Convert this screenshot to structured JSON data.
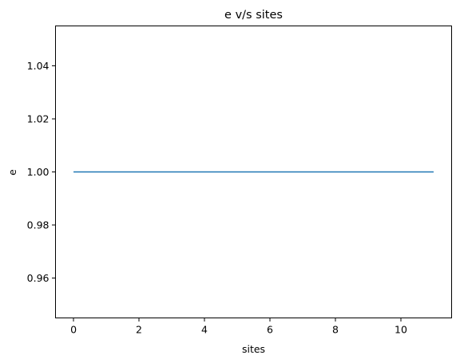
{
  "chart_data": {
    "type": "line",
    "title": "e v/s sites",
    "xlabel": "sites",
    "ylabel": "e",
    "xlim": [
      -0.55,
      11.55
    ],
    "ylim": [
      0.945,
      1.055
    ],
    "xticks": [
      0,
      2,
      4,
      6,
      8,
      10
    ],
    "xtick_labels": [
      "0",
      "2",
      "4",
      "6",
      "8",
      "10"
    ],
    "yticks": [
      0.96,
      0.98,
      1.0,
      1.02,
      1.04
    ],
    "ytick_labels": [
      "0.96",
      "0.98",
      "1.00",
      "1.02",
      "1.04"
    ],
    "grid": false,
    "series": [
      {
        "color": "#1f77b4",
        "x": [
          0,
          1,
          2,
          3,
          4,
          5,
          6,
          7,
          8,
          9,
          10,
          11
        ],
        "y": [
          1.0,
          1.0,
          1.0,
          1.0,
          1.0,
          1.0,
          1.0,
          1.0,
          1.0,
          1.0,
          1.0,
          1.0
        ]
      }
    ]
  }
}
